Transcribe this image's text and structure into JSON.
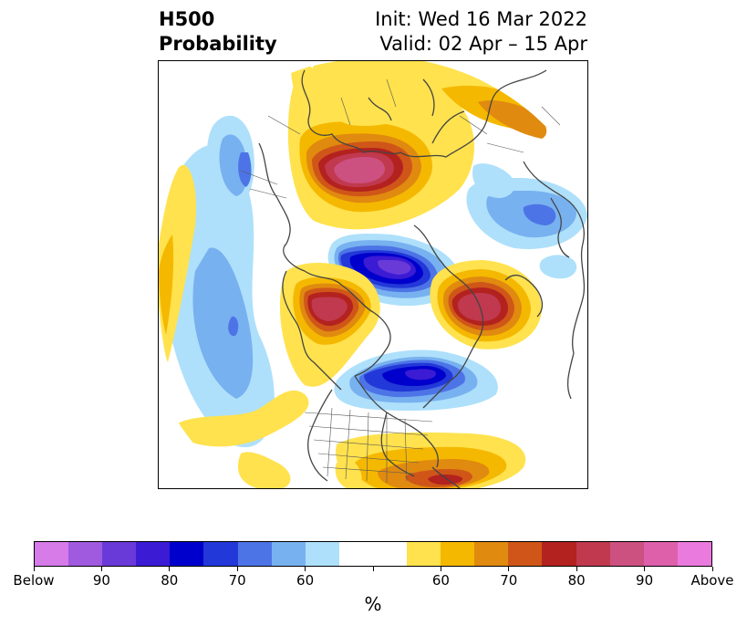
{
  "header": {
    "title_line1": "H500",
    "title_line2": "Probability",
    "init_text": "Init: Wed 16 Mar 2022",
    "valid_text": "Valid: 02 Apr – 15 Apr"
  },
  "map": {
    "projection": "polar stereographic, North America / Arctic centred",
    "anomalies": [
      {
        "region": "Northern Siberia",
        "sign": "above",
        "max_class": "90"
      },
      {
        "region": "Arctic Ocean / Canadian Arctic",
        "sign": "below",
        "max_class": "90"
      },
      {
        "region": "Alaska / Gulf of Alaska",
        "sign": "above",
        "max_class": "80"
      },
      {
        "region": "Greenland / Iceland",
        "sign": "above",
        "max_class": "80"
      },
      {
        "region": "Eastern Canada / Hudson Bay",
        "sign": "below",
        "max_class": "80"
      },
      {
        "region": "Scandinavia / Northern Europe",
        "sign": "below",
        "max_class": "70"
      },
      {
        "region": "Western North Pacific",
        "sign": "below",
        "max_class": "70"
      },
      {
        "region": "Subtropical Atlantic",
        "sign": "above",
        "max_class": "80"
      }
    ]
  },
  "colorbar": {
    "colors": [
      "#d67be8",
      "#a05ae0",
      "#6a3ad8",
      "#3b1bd4",
      "#0000cc",
      "#2238d8",
      "#4d74e6",
      "#78b1f0",
      "#aee0fb",
      "#ffffff",
      "#ffffff",
      "#ffe24d",
      "#f5b800",
      "#e08a10",
      "#cf5618",
      "#b3221f",
      "#c0394e",
      "#cc5080",
      "#de60ab",
      "#ea7ade"
    ],
    "tick_labels": [
      "Below",
      "90",
      "80",
      "70",
      "60",
      "",
      "60",
      "70",
      "80",
      "90",
      "Above"
    ],
    "unit_label": "%"
  }
}
